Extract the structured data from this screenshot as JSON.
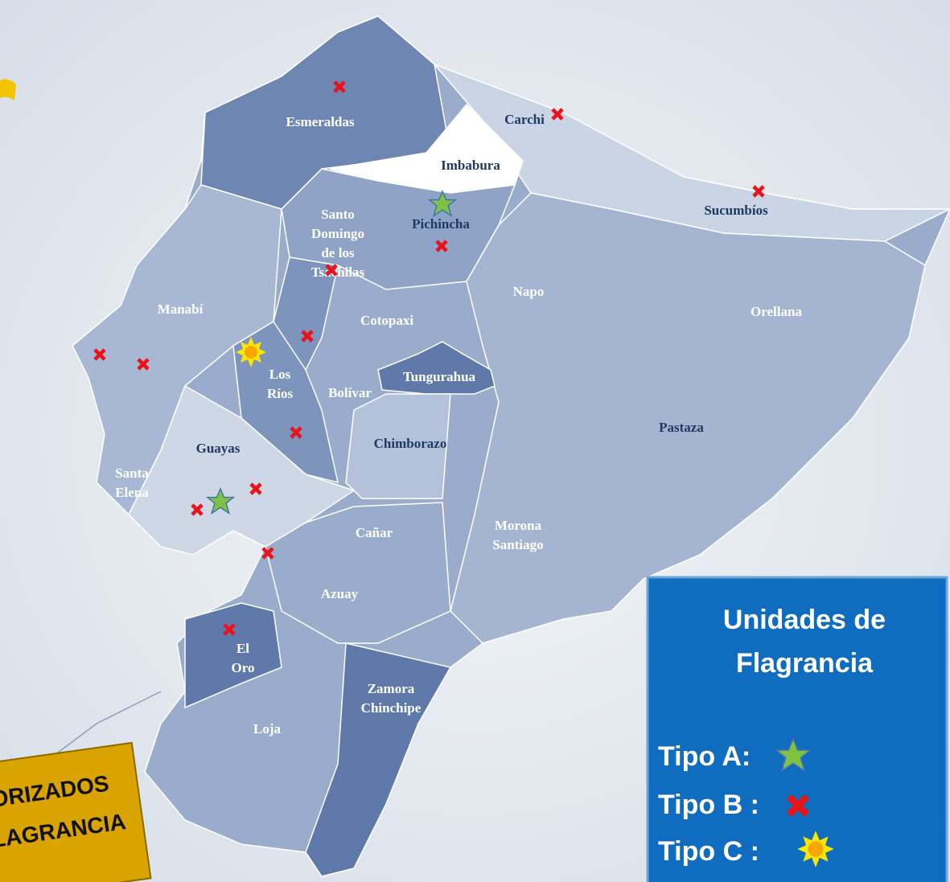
{
  "map": {
    "provinces": [
      [
        "Esmeraldas"
      ],
      [
        "Carchi"
      ],
      [
        "Imbabura"
      ],
      [
        "Sucumbíos"
      ],
      [
        "Santo",
        "Domingo",
        "de los",
        "Tsáchilas"
      ],
      [
        "Pichincha"
      ],
      [
        "Napo"
      ],
      [
        "Orellana"
      ],
      [
        "Manabí"
      ],
      [
        "Cotopaxi"
      ],
      [
        "Los",
        "Ríos"
      ],
      [
        "Bolívar"
      ],
      [
        "Tungurahua"
      ],
      [
        "Pastaza"
      ],
      [
        "Chimborazo"
      ],
      [
        "Guayas"
      ],
      [
        "Santa",
        "Elena"
      ],
      [
        "Cañar"
      ],
      [
        "Morona",
        "Santiago"
      ],
      [
        "Azuay"
      ],
      [
        "El",
        "Oro"
      ],
      [
        "Zamora",
        "Chinchipe"
      ],
      [
        "Loja"
      ]
    ]
  },
  "legend": {
    "title": [
      "Unidades de",
      "Flagrancia"
    ],
    "items": [
      "Tipo A:",
      "Tipo B :",
      "Tipo C :"
    ]
  },
  "banner": [
    "ORIZADOS",
    "LAGRANCIA"
  ]
}
